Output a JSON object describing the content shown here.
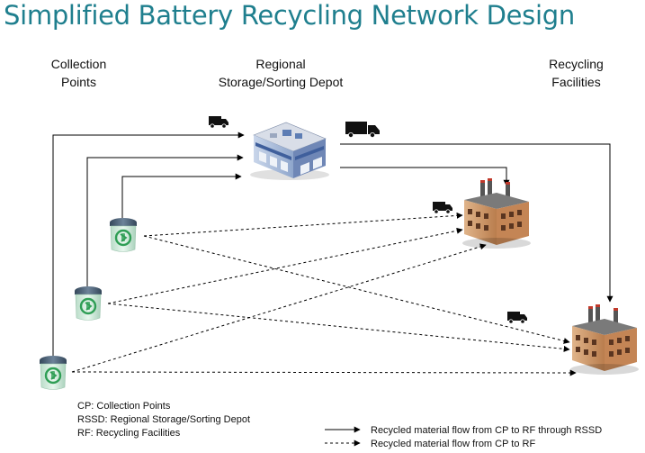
{
  "title": "Simplified Battery Recycling Network Design",
  "headers": {
    "collection_points": "Collection\nPoints",
    "rssd": "Regional\nStorage/Sorting Depot",
    "recycling_facilities": "Recycling\nFacilities"
  },
  "abbreviations": [
    "CP: Collection Points",
    "RSSD: Regional Storage/Sorting Depot",
    "RF: Recycling Facilities"
  ],
  "legend": {
    "solid": "Recycled material flow from CP to RF through RSSD",
    "dashed": "Recycled material flow from CP to RF"
  },
  "icons": {
    "collection_point": "battery-bin-icon",
    "depot": "warehouse-icon",
    "facility": "factory-icon",
    "truck": "truck-icon"
  },
  "colors": {
    "title": "#1f7f8e",
    "bin_lid": "#4a5f72",
    "bin_body": "#d4eee0",
    "recycle": "#2f9e55",
    "factory": "#d69b6b",
    "depot_blue": "#5d7db4"
  }
}
